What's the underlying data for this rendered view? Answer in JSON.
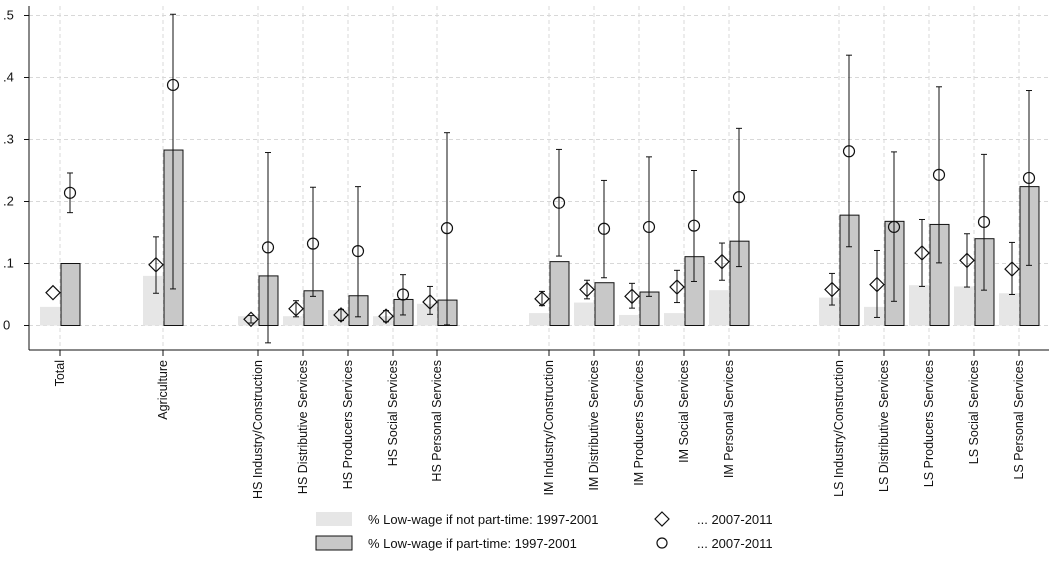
{
  "chart_data": {
    "type": "bar",
    "title": "",
    "xlabel": "",
    "ylabel": "",
    "ylim": [
      -0.04,
      0.5
    ],
    "yticks": [
      0,
      0.1,
      0.2,
      0.3,
      0.4,
      0.5
    ],
    "ytick_labels": [
      "0",
      ".1",
      ".2",
      ".3",
      ".4",
      ".5"
    ],
    "grid": true,
    "legend_position": "bottom",
    "colors": {
      "light_bar": "#e6e6e6",
      "dark_bar": "#c8c8c8",
      "bar_stroke": "#111111",
      "grid": "#d8d8d8"
    },
    "categories": [
      "Total",
      "Agriculture",
      "HS Industry/Construction",
      "HS Distributive Services",
      "HS Producers Services",
      "HS Social Services",
      "HS Personal Services",
      "IM Industry/Construction",
      "IM Distributive Services",
      "IM Producers Services",
      "IM Social Services",
      "IM Personal Services",
      "LS Industry/Construction",
      "LS Distributive Services",
      "LS Producers Services",
      "LS Social Services",
      "LS Personal Services"
    ],
    "series": [
      {
        "name": "% Low-wage if not part-time: 1997-2001",
        "kind": "bar",
        "values": [
          0.03,
          0.08,
          0.015,
          0.015,
          0.025,
          0.015,
          0.035,
          0.02,
          0.037,
          0.017,
          0.02,
          0.057,
          0.045,
          0.03,
          0.065,
          0.063,
          0.052
        ]
      },
      {
        "name": "% Low-wage if part-time: 1997-2001",
        "kind": "bar",
        "values": [
          0.1,
          0.283,
          0.08,
          0.056,
          0.048,
          0.042,
          0.041,
          0.103,
          0.069,
          0.054,
          0.111,
          0.136,
          0.178,
          0.168,
          0.163,
          0.14,
          0.224
        ]
      },
      {
        "name": "... 2007-2011",
        "kind": "diamond",
        "values": [
          0.053,
          0.098,
          0.01,
          0.027,
          0.017,
          0.015,
          0.038,
          0.043,
          0.058,
          0.047,
          0.062,
          0.103,
          0.058,
          0.066,
          0.117,
          0.105,
          0.091
        ],
        "ci_low": [
          0.053,
          0.052,
          0.004,
          0.014,
          0.008,
          0.006,
          0.018,
          0.032,
          0.043,
          0.028,
          0.037,
          0.073,
          0.033,
          0.013,
          0.063,
          0.062,
          0.05
        ],
        "ci_high": [
          0.053,
          0.143,
          0.016,
          0.04,
          0.026,
          0.024,
          0.063,
          0.055,
          0.073,
          0.068,
          0.089,
          0.133,
          0.084,
          0.121,
          0.171,
          0.148,
          0.134
        ]
      },
      {
        "name": "... 2007-2011",
        "kind": "circle",
        "values": [
          0.214,
          0.388,
          0.126,
          0.132,
          0.12,
          0.05,
          0.157,
          0.198,
          0.156,
          0.159,
          0.161,
          0.207,
          0.281,
          0.159,
          0.243,
          0.167,
          0.238
        ],
        "ci_low": [
          0.182,
          0.059,
          -0.028,
          0.047,
          0.014,
          0.017,
          0.001,
          0.112,
          0.077,
          0.047,
          0.071,
          0.095,
          0.127,
          0.039,
          0.101,
          0.057,
          0.097
        ],
        "ci_high": [
          0.246,
          0.502,
          0.279,
          0.223,
          0.224,
          0.082,
          0.311,
          0.284,
          0.234,
          0.272,
          0.25,
          0.318,
          0.436,
          0.28,
          0.385,
          0.276,
          0.379
        ]
      }
    ],
    "legend": [
      {
        "kind": "light_bar",
        "label": "% Low-wage if not part-time: 1997-2001"
      },
      {
        "kind": "dark_bar",
        "label": "% Low-wage if part-time: 1997-2001"
      },
      {
        "kind": "diamond",
        "label": "... 2007-2011"
      },
      {
        "kind": "circle",
        "label": "... 2007-2011"
      }
    ]
  }
}
